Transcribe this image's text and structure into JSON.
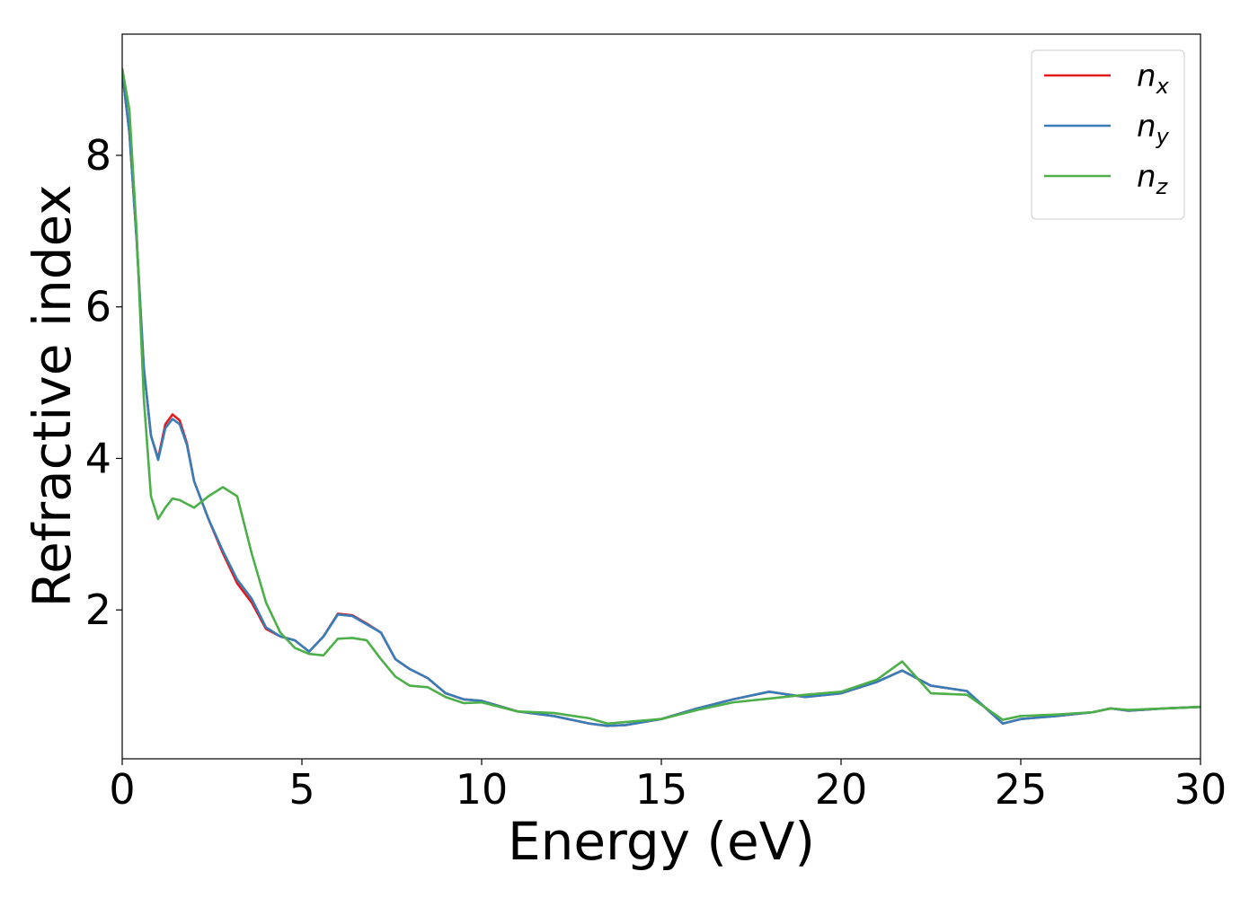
{
  "chart_data": {
    "type": "line",
    "xlabel": "Energy (eV)",
    "ylabel": "Refractive index",
    "x": [
      0,
      0.2,
      0.4,
      0.6,
      0.8,
      1.0,
      1.2,
      1.4,
      1.6,
      1.8,
      2.0,
      2.4,
      2.8,
      3.2,
      3.6,
      4.0,
      4.4,
      4.8,
      5.2,
      5.6,
      6.0,
      6.4,
      6.8,
      7.2,
      7.6,
      8.0,
      8.5,
      9,
      9.5,
      10,
      11,
      12,
      13,
      13.5,
      14,
      15,
      16,
      17,
      18,
      19,
      20,
      21,
      21.7,
      22.5,
      23.5,
      24.5,
      25,
      26,
      27,
      27.5,
      28,
      29,
      30
    ],
    "series": [
      {
        "name": "nx",
        "color": "#e41a1c",
        "values": [
          9.1,
          8.3,
          6.9,
          5.2,
          4.3,
          4.0,
          4.45,
          4.58,
          4.5,
          4.2,
          3.7,
          3.2,
          2.75,
          2.35,
          2.1,
          1.75,
          1.65,
          1.6,
          1.45,
          1.65,
          1.95,
          1.93,
          1.82,
          1.7,
          1.35,
          1.22,
          1.1,
          0.9,
          0.82,
          0.8,
          0.66,
          0.6,
          0.5,
          0.47,
          0.48,
          0.56,
          0.7,
          0.82,
          0.92,
          0.85,
          0.9,
          1.05,
          1.2,
          1.0,
          0.93,
          0.5,
          0.56,
          0.6,
          0.65,
          0.7,
          0.67,
          0.7,
          0.72
        ]
      },
      {
        "name": "ny",
        "color": "#377eb8",
        "values": [
          9.1,
          8.3,
          6.9,
          5.2,
          4.3,
          3.98,
          4.4,
          4.52,
          4.45,
          4.18,
          3.7,
          3.2,
          2.78,
          2.4,
          2.15,
          1.77,
          1.65,
          1.6,
          1.45,
          1.65,
          1.94,
          1.92,
          1.81,
          1.7,
          1.35,
          1.22,
          1.1,
          0.9,
          0.82,
          0.8,
          0.66,
          0.6,
          0.5,
          0.47,
          0.48,
          0.56,
          0.7,
          0.82,
          0.92,
          0.85,
          0.9,
          1.05,
          1.2,
          1.0,
          0.93,
          0.5,
          0.56,
          0.6,
          0.65,
          0.7,
          0.67,
          0.7,
          0.72
        ]
      },
      {
        "name": "nz",
        "color": "#4daf4a",
        "values": [
          9.15,
          8.6,
          7.0,
          4.8,
          3.5,
          3.2,
          3.35,
          3.47,
          3.45,
          3.4,
          3.35,
          3.5,
          3.62,
          3.5,
          2.75,
          2.1,
          1.7,
          1.5,
          1.42,
          1.4,
          1.62,
          1.63,
          1.6,
          1.35,
          1.12,
          1.0,
          0.98,
          0.85,
          0.77,
          0.78,
          0.66,
          0.64,
          0.57,
          0.5,
          0.52,
          0.56,
          0.68,
          0.78,
          0.83,
          0.88,
          0.92,
          1.08,
          1.32,
          0.9,
          0.88,
          0.55,
          0.6,
          0.62,
          0.65,
          0.7,
          0.68,
          0.7,
          0.72
        ]
      }
    ],
    "xlim": [
      0,
      30
    ],
    "xticks": [
      0,
      5,
      10,
      15,
      20,
      25,
      30
    ],
    "ylim": [
      0.035,
      9.6
    ],
    "yticks": [
      2,
      4,
      6,
      8
    ],
    "legend": "upper right"
  }
}
